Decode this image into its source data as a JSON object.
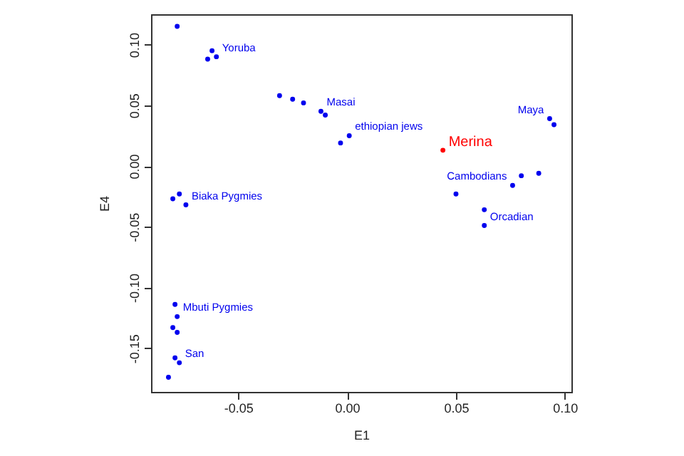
{
  "chart_data": {
    "type": "scatter",
    "xlabel": "E1",
    "ylabel": "E4",
    "xlim": [
      -0.09,
      0.103
    ],
    "ylim": [
      -0.186,
      0.125
    ],
    "marker": "circle",
    "grid": false,
    "xticks": [
      {
        "value": -0.05,
        "label": "-0.05"
      },
      {
        "value": 0,
        "label": "0.00"
      },
      {
        "value": 0.05,
        "label": "0.05"
      },
      {
        "value": 0.1,
        "label": "0.10"
      }
    ],
    "yticks": [
      {
        "value": -0.15,
        "label": "-0.15"
      },
      {
        "value": -0.1,
        "label": "-0.10"
      },
      {
        "value": -0.05,
        "label": "-0.05"
      },
      {
        "value": 0,
        "label": "0.00"
      },
      {
        "value": 0.05,
        "label": "0.05"
      },
      {
        "value": 0.1,
        "label": "0.10"
      }
    ],
    "series": [
      {
        "name": "Yoruba",
        "color": "#0000ee",
        "x": [
          -0.078,
          -0.062,
          -0.06,
          -0.064
        ],
        "values": [
          0.115,
          0.095,
          0.09,
          0.088
        ]
      },
      {
        "name": "Masai",
        "color": "#0000ee",
        "x": [
          -0.031,
          -0.02,
          -0.025,
          -0.012
        ],
        "values": [
          0.058,
          0.052,
          0.055,
          0.045
        ]
      },
      {
        "name": "ethiopian jews",
        "color": "#0000ee",
        "x": [
          -0.003,
          0.001,
          -0.01
        ],
        "values": [
          0.019,
          0.025,
          0.042
        ]
      },
      {
        "name": "Merina",
        "color": "#ff0000",
        "x": [
          0.044
        ],
        "values": [
          0.013
        ]
      },
      {
        "name": "Maya",
        "color": "#0000ee",
        "x": [
          0.093,
          0.095
        ],
        "values": [
          0.039,
          0.034
        ]
      },
      {
        "name": "Cambodians",
        "color": "#0000ee",
        "x": [
          0.076,
          0.08,
          0.088
        ],
        "values": [
          -0.016,
          -0.008,
          -0.006
        ]
      },
      {
        "name": "Orcadian",
        "color": "#0000ee",
        "x": [
          0.063,
          0.05,
          0.063
        ],
        "values": [
          -0.049,
          -0.023,
          -0.036
        ]
      },
      {
        "name": "Biaka Pygmies",
        "color": "#0000ee",
        "x": [
          -0.074,
          -0.077,
          -0.08
        ],
        "values": [
          -0.032,
          -0.023,
          -0.027
        ]
      },
      {
        "name": "Mbuti Pygmies",
        "color": "#0000ee",
        "x": [
          -0.08,
          -0.079,
          -0.078
        ],
        "values": [
          -0.133,
          -0.114,
          -0.124
        ]
      },
      {
        "name": "San",
        "color": "#0000ee",
        "x": [
          -0.082,
          -0.079,
          -0.077,
          -0.078
        ],
        "values": [
          -0.174,
          -0.158,
          -0.162,
          -0.137
        ]
      }
    ]
  }
}
